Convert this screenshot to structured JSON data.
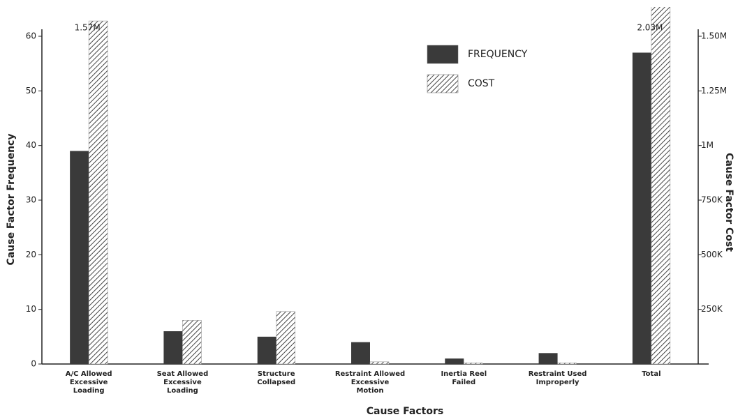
{
  "chart_data": {
    "type": "bar",
    "x_label": "Cause Factors",
    "y_label": "Cause Factor Frequency",
    "y2_label": "Cause Factor Cost",
    "categories": [
      [
        "A/C Allowed",
        "Excessive",
        "Loading"
      ],
      [
        "Seat Allowed",
        "Excessive",
        "Loading"
      ],
      [
        "Structure",
        "Collapsed"
      ],
      [
        "Restraint Allowed",
        "Excessive",
        "Motion"
      ],
      [
        "Inertia  Reel",
        "Failed"
      ],
      [
        "Restraint Used",
        "Improperly"
      ],
      [
        "Total"
      ]
    ],
    "series": [
      {
        "name": "FREQUENCY",
        "color": "#3a3a3a",
        "values": [
          39,
          6,
          5,
          4,
          1,
          2,
          57
        ]
      },
      {
        "name": "COST",
        "color": "#444444",
        "axis": "y2",
        "values": [
          1570000,
          200000,
          240000,
          10000,
          5000,
          5000,
          2030000
        ],
        "value_labels": [
          "1.57M",
          null,
          null,
          null,
          null,
          null,
          "2.03M"
        ]
      }
    ],
    "ylim": [
      0,
      60
    ],
    "yticks": [
      0,
      10,
      20,
      30,
      40,
      50,
      60
    ],
    "y2lim": [
      0,
      1500000
    ],
    "y2ticks": [
      {
        "value": 250000,
        "label": "250K"
      },
      {
        "value": 500000,
        "label": "500K"
      },
      {
        "value": 750000,
        "label": "750K"
      },
      {
        "value": 1000000,
        "label": "1M"
      },
      {
        "value": 1250000,
        "label": "1.25M"
      },
      {
        "value": 1500000,
        "label": "1.50M"
      }
    ]
  }
}
